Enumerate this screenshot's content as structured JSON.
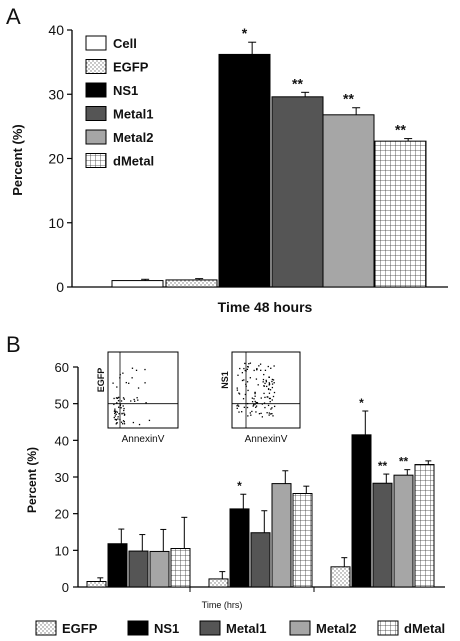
{
  "chart_data": [
    {
      "type": "bar",
      "panel_label": "A",
      "xlabel": "Time 48 hours",
      "ylabel": "Percent (%)",
      "ylim": [
        0,
        40
      ],
      "yticks": [
        0,
        10,
        20,
        30,
        40
      ],
      "grid": false,
      "legend_position": "top-left",
      "categories": [
        "Cell",
        "EGFP",
        "NS1",
        "Metal1",
        "Metal2",
        "dMetal"
      ],
      "values": [
        1.0,
        1.1,
        36.2,
        29.6,
        26.8,
        22.7
      ],
      "errors": [
        0.2,
        0.2,
        1.9,
        0.7,
        1.1,
        0.4
      ],
      "annotations": [
        "",
        "",
        "*",
        "**",
        "**",
        "**"
      ],
      "legend": [
        {
          "label": "Cell",
          "fill": "#ffffff"
        },
        {
          "label": "EGFP",
          "fill": "dots"
        },
        {
          "label": "NS1",
          "fill": "#000000"
        },
        {
          "label": "Metal1",
          "fill": "#555555"
        },
        {
          "label": "Metal2",
          "fill": "#a6a6a6"
        },
        {
          "label": "dMetal",
          "fill": "grid"
        }
      ]
    },
    {
      "type": "bar",
      "panel_label": "B",
      "xlabel": "Time (hrs)",
      "ylabel": "Percent (%)",
      "ylim": [
        0,
        60
      ],
      "yticks": [
        0,
        10,
        20,
        30,
        40,
        50,
        60
      ],
      "grid": false,
      "legend_position": "bottom",
      "groups": 3,
      "series": [
        {
          "name": "EGFP",
          "fill": "dots",
          "values": [
            1.5,
            2.2,
            5.5
          ],
          "errors": [
            1.0,
            2.0,
            2.5
          ],
          "annotations": [
            "",
            "",
            ""
          ]
        },
        {
          "name": "NS1",
          "fill": "#000000",
          "values": [
            11.8,
            21.3,
            41.5
          ],
          "errors": [
            4.0,
            4.0,
            6.5
          ],
          "annotations": [
            "",
            "*",
            "*"
          ]
        },
        {
          "name": "Metal1",
          "fill": "#555555",
          "values": [
            9.8,
            14.8,
            28.3
          ],
          "errors": [
            4.5,
            6.0,
            2.5
          ],
          "annotations": [
            "",
            "",
            "**"
          ]
        },
        {
          "name": "Metal2",
          "fill": "#a6a6a6",
          "values": [
            9.7,
            28.2,
            30.5
          ],
          "errors": [
            6.0,
            3.5,
            1.5
          ],
          "annotations": [
            "",
            "",
            "**"
          ]
        },
        {
          "name": "dMetal",
          "fill": "grid",
          "values": [
            10.5,
            25.5,
            33.4
          ],
          "errors": [
            8.5,
            2.0,
            1.0
          ],
          "annotations": [
            "",
            "",
            ""
          ]
        }
      ],
      "insets": [
        {
          "vertical_label": "EGFP",
          "bottom_label": "AnnexinV"
        },
        {
          "vertical_label": "NS1",
          "bottom_label": "AnnexinV"
        }
      ]
    }
  ]
}
